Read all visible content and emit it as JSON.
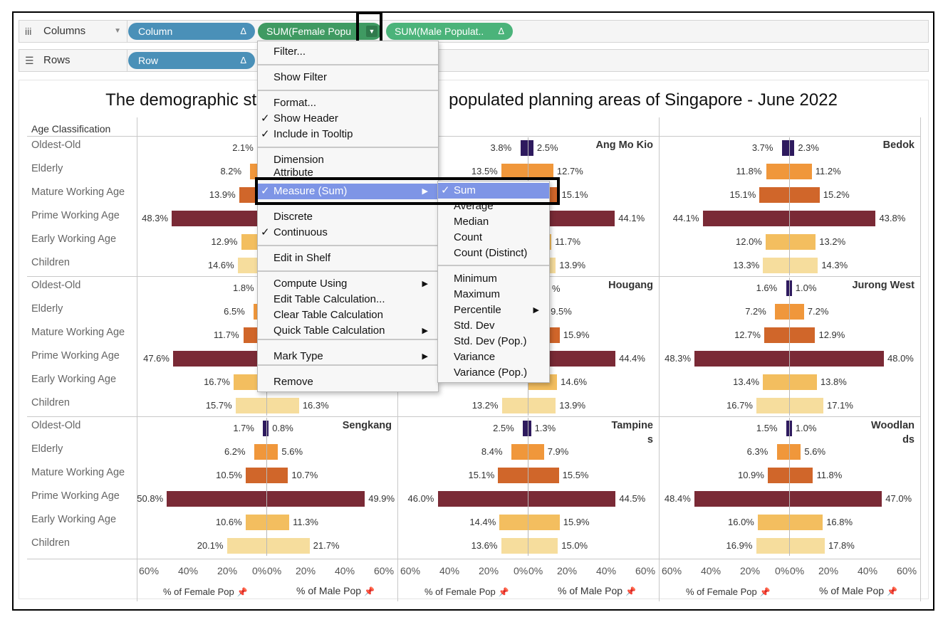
{
  "shelves": {
    "columns_label": "Columns",
    "rows_label": "Rows",
    "column_pills": [
      "Column",
      "SUM(Female Popu",
      "SUM(Male Populat.."
    ],
    "row_pills": [
      "Row"
    ],
    "delta": "Δ"
  },
  "chart_data": {
    "type": "bar",
    "title_left": "The demographic st",
    "title_right": "populated planning areas of Singapore - June 2022",
    "row_header": "Age Classification",
    "categories": [
      "Oldest-Old",
      "Elderly",
      "Mature Working Age",
      "Prime Working Age",
      "Early Working Age",
      "Children"
    ],
    "category_colors": [
      "#2e1a5e",
      "#f0973b",
      "#d0662a",
      "#7a2a36",
      "#f3be5f",
      "#f6dd9d"
    ],
    "x_range": [
      0,
      60
    ],
    "ticks": [
      "60%",
      "40%",
      "20%",
      "0%",
      "0%",
      "20%",
      "40%",
      "60%"
    ],
    "x_titles": [
      "% of Female Pop",
      "% of Male Pop"
    ],
    "areas": [
      {
        "name": "",
        "female": [
          2.1,
          8.2,
          13.9,
          48.3,
          12.9,
          14.6
        ],
        "male": [
          null,
          null,
          null,
          null,
          null,
          null
        ]
      },
      {
        "name": "Ang Mo Kio",
        "female": [
          3.8,
          13.5,
          null,
          null,
          null,
          null
        ],
        "male": [
          2.5,
          12.7,
          15.1,
          44.1,
          11.7,
          13.9
        ]
      },
      {
        "name": "Bedok",
        "female": [
          3.7,
          11.8,
          15.1,
          44.1,
          12.0,
          13.3
        ],
        "male": [
          2.3,
          11.2,
          15.2,
          43.8,
          13.2,
          14.3
        ]
      },
      {
        "name": "",
        "female": [
          1.8,
          6.5,
          11.7,
          47.6,
          16.7,
          15.7
        ],
        "male": [
          null,
          null,
          null,
          null,
          null,
          16.3
        ]
      },
      {
        "name": "Hougang",
        "female": [
          null,
          null,
          null,
          null,
          null,
          13.2
        ],
        "male": [
          null,
          9.5,
          15.9,
          44.4,
          14.6,
          13.9
        ]
      },
      {
        "name": "Jurong West",
        "female": [
          1.6,
          7.2,
          12.7,
          48.3,
          13.4,
          16.7
        ],
        "male": [
          1.0,
          7.2,
          12.9,
          48.0,
          13.8,
          17.1
        ]
      },
      {
        "name": "Sengkang",
        "female": [
          1.7,
          6.2,
          10.5,
          50.8,
          10.6,
          20.1
        ],
        "male": [
          0.8,
          5.6,
          10.7,
          49.9,
          11.3,
          21.7
        ]
      },
      {
        "name": "Tampines",
        "female": [
          2.5,
          8.4,
          15.1,
          46.0,
          14.4,
          13.6
        ],
        "male": [
          1.3,
          7.9,
          15.5,
          44.5,
          15.9,
          15.0
        ]
      },
      {
        "name": "Woodlands",
        "female": [
          1.5,
          6.3,
          10.9,
          48.4,
          16.0,
          16.9
        ],
        "male": [
          1.0,
          5.6,
          11.8,
          47.0,
          16.8,
          17.8
        ]
      }
    ],
    "area_labels": [
      "",
      "Ang Mo Kio",
      "Bedok",
      "",
      "Hougang",
      "Jurong West",
      "Sengkang",
      "Tampine\ns",
      "Woodlan\nds"
    ],
    "partial_labels": {
      "hougang_male_oldest": "%",
      "amk_female_mature_hidden": true
    }
  },
  "pill_menu": {
    "items": [
      {
        "label": "Filter..."
      },
      {
        "label": "Show Filter"
      },
      {
        "label": "Format..."
      },
      {
        "label": "Show Header",
        "checked": true
      },
      {
        "label": "Include in Tooltip",
        "checked": true
      },
      {
        "label": "Dimension"
      },
      {
        "label": "Attribute"
      },
      {
        "label": "Measure (Sum)",
        "checked": true,
        "submenu": true,
        "highlighted": true
      },
      {
        "label": "Discrete"
      },
      {
        "label": "Continuous",
        "checked": true
      },
      {
        "label": "Edit in Shelf"
      },
      {
        "label": "Compute Using",
        "submenu": true
      },
      {
        "label": "Edit Table Calculation..."
      },
      {
        "label": "Clear Table Calculation"
      },
      {
        "label": "Quick Table Calculation",
        "submenu": true
      },
      {
        "label": "Mark Type",
        "submenu": true
      },
      {
        "label": "Remove"
      }
    ],
    "check": "✓",
    "arrow": "▶"
  },
  "measure_submenu": {
    "items": [
      {
        "label": "Sum",
        "checked": true,
        "highlighted": true
      },
      {
        "label": "Average"
      },
      {
        "label": "Median"
      },
      {
        "label": "Count"
      },
      {
        "label": "Count (Distinct)"
      },
      {
        "label": "Minimum"
      },
      {
        "label": "Maximum"
      },
      {
        "label": "Percentile",
        "submenu": true
      },
      {
        "label": "Std. Dev"
      },
      {
        "label": "Std. Dev (Pop.)"
      },
      {
        "label": "Variance"
      },
      {
        "label": "Variance (Pop.)"
      }
    ]
  }
}
